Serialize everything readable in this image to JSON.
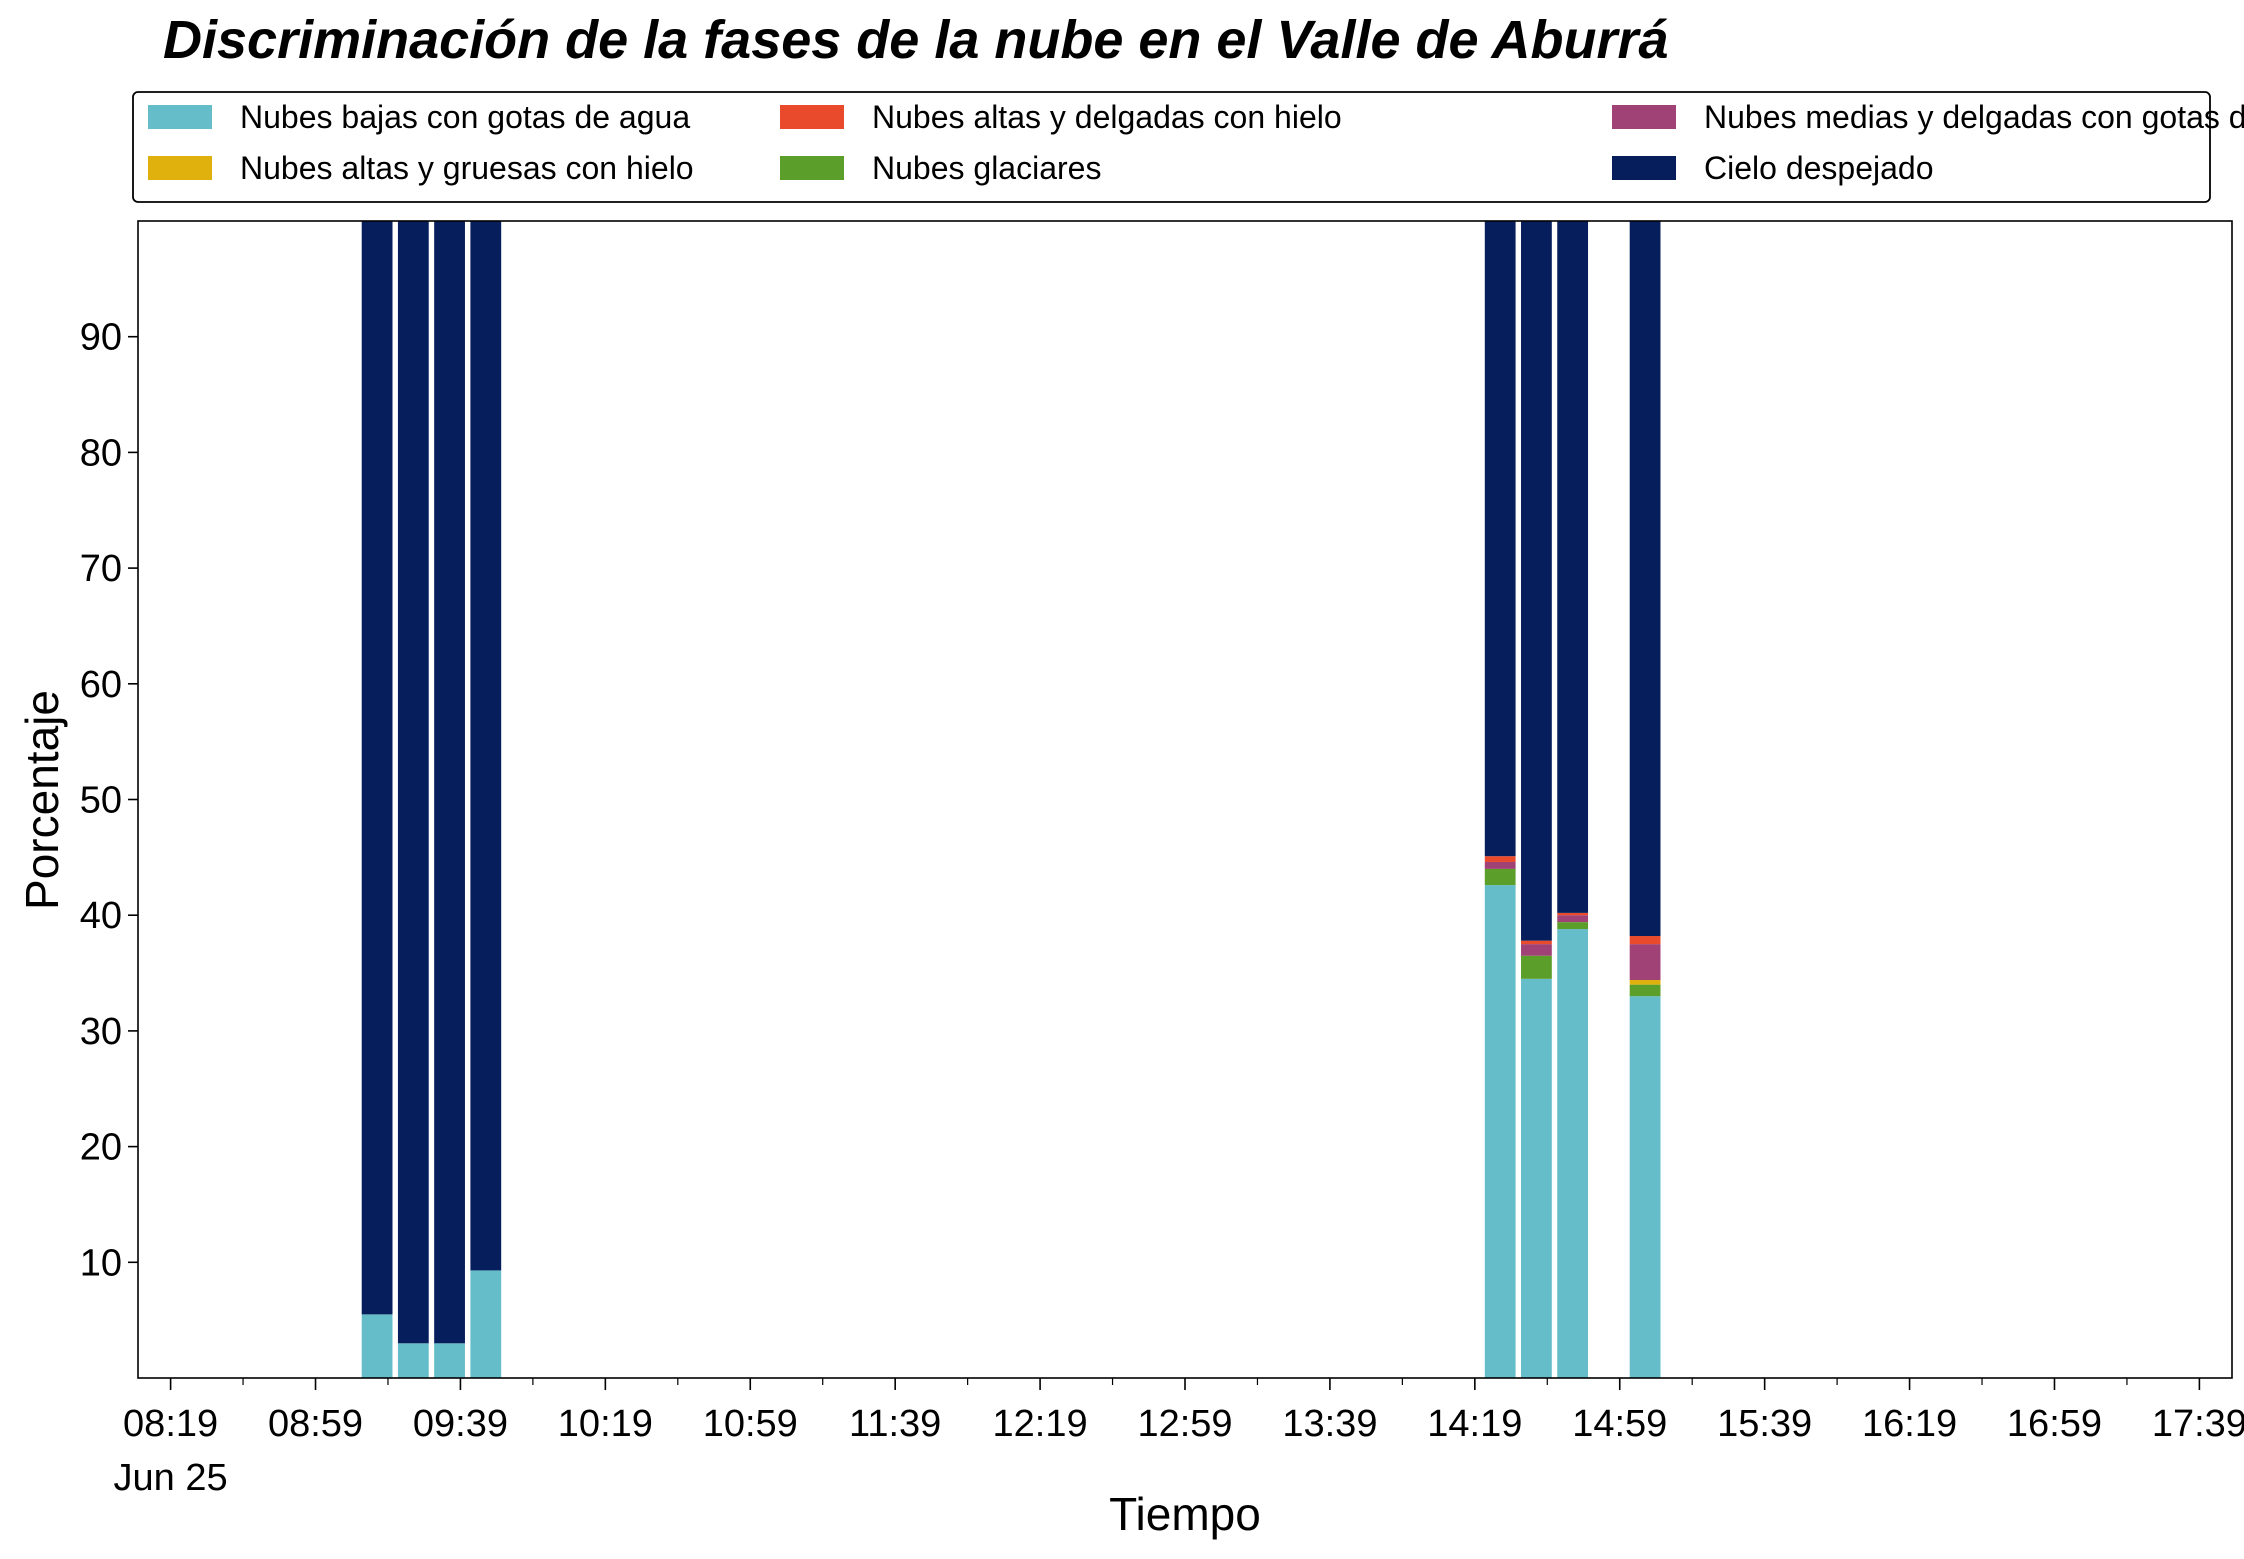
{
  "chart_data": {
    "type": "bar",
    "stacked": true,
    "title": "Discriminación de la fases de la nube en el Valle de Aburrá",
    "xlabel": "Tiempo",
    "ylabel": "Porcentaje",
    "ylim": [
      0,
      100
    ],
    "yticks": [
      10,
      20,
      30,
      40,
      50,
      60,
      70,
      80,
      90
    ],
    "xlim_minutes": [
      490,
      1068
    ],
    "xticks": [
      {
        "label": "08:19",
        "sublabel": "Jun 25",
        "minutes": 499
      },
      {
        "label": "08:59",
        "sublabel": "",
        "minutes": 539
      },
      {
        "label": "09:39",
        "sublabel": "",
        "minutes": 579
      },
      {
        "label": "10:19",
        "sublabel": "",
        "minutes": 619
      },
      {
        "label": "10:59",
        "sublabel": "",
        "minutes": 659
      },
      {
        "label": "11:39",
        "sublabel": "",
        "minutes": 699
      },
      {
        "label": "12:19",
        "sublabel": "",
        "minutes": 739
      },
      {
        "label": "12:59",
        "sublabel": "",
        "minutes": 779
      },
      {
        "label": "13:39",
        "sublabel": "",
        "minutes": 819
      },
      {
        "label": "14:19",
        "sublabel": "",
        "minutes": 859
      },
      {
        "label": "14:59",
        "sublabel": "",
        "minutes": 899
      },
      {
        "label": "15:39",
        "sublabel": "",
        "minutes": 939
      },
      {
        "label": "16:19",
        "sublabel": "",
        "minutes": 979
      },
      {
        "label": "16:59",
        "sublabel": "",
        "minutes": 1019
      },
      {
        "label": "17:39",
        "sublabel": "",
        "minutes": 1059
      }
    ],
    "bar_width_minutes": 8.5,
    "times": [
      "09:16",
      "09:26",
      "09:36",
      "09:46",
      "14:26",
      "14:36",
      "14:46",
      "15:06"
    ],
    "time_minutes": [
      556,
      566,
      576,
      586,
      866,
      876,
      886,
      906
    ],
    "series": [
      {
        "name": "Nubes bajas con gotas de agua",
        "color": "#64bdc9",
        "values": [
          5.5,
          3.0,
          3.0,
          9.3,
          42.6,
          34.5,
          38.8,
          33.0
        ]
      },
      {
        "name": "Nubes glaciares",
        "color": "#5b9e2a",
        "values": [
          0,
          0,
          0,
          0,
          1.4,
          2.0,
          0.6,
          1.0
        ]
      },
      {
        "name": "Nubes altas y gruesas con hielo",
        "color": "#e0b00d",
        "values": [
          0,
          0,
          0,
          0,
          0,
          0,
          0,
          0.4
        ]
      },
      {
        "name": "Nubes medias y delgadas con gotas de agua",
        "color": "#a14276",
        "values": [
          0,
          0,
          0,
          0,
          0.6,
          1.0,
          0.6,
          3.1
        ]
      },
      {
        "name": "Nubes altas y delgadas con hielo",
        "color": "#e84a2b",
        "values": [
          0,
          0,
          0,
          0,
          0.5,
          0.3,
          0.2,
          0.7
        ]
      },
      {
        "name": "Cielo despejado",
        "color": "#061e5c",
        "values": [
          94.5,
          97.0,
          97.0,
          90.7,
          54.9,
          62.2,
          59.8,
          61.8
        ]
      }
    ],
    "legend": {
      "position": "top",
      "columns": 3,
      "order": [
        0,
        2,
        4,
        1,
        3,
        5
      ]
    },
    "grid": false
  }
}
